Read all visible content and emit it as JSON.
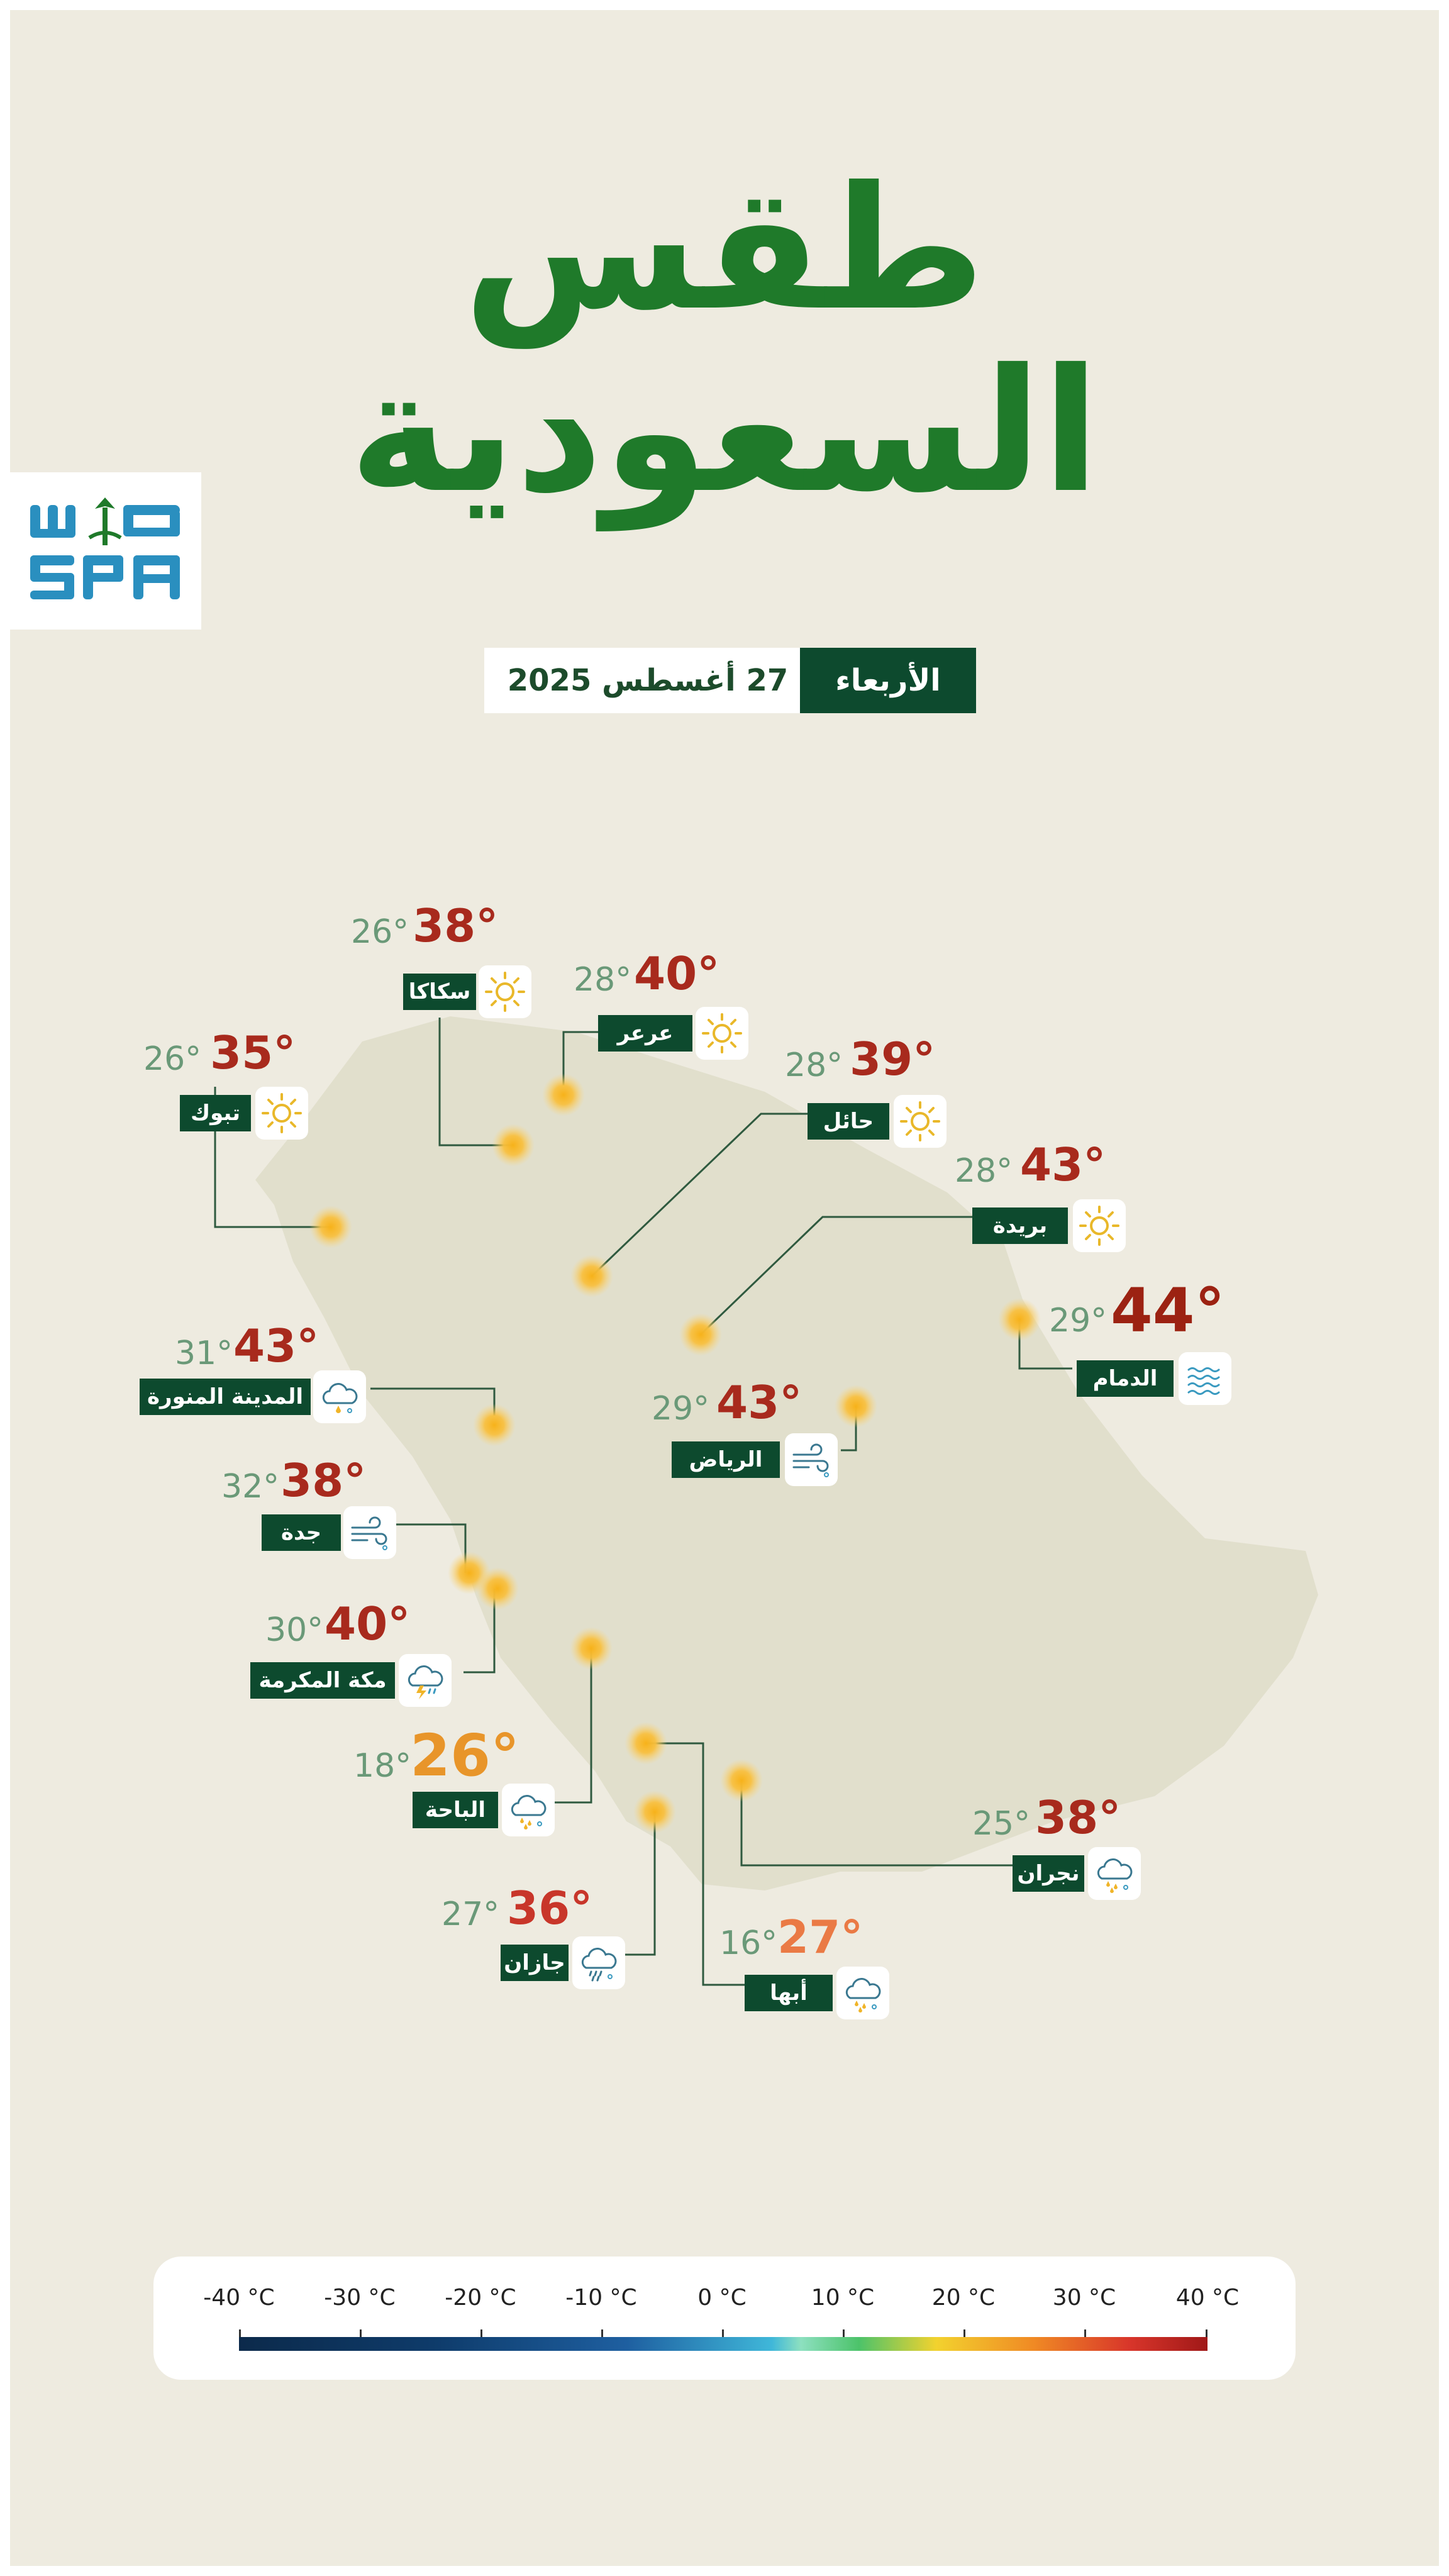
{
  "title": {
    "line1": "طقس",
    "line2": "السعودية"
  },
  "logo": {
    "arabic": "واس",
    "latin": "SPA"
  },
  "date": {
    "day": "الأربعاء",
    "full": "27 أغسطس 2025"
  },
  "colors": {
    "background": "#eeebe0",
    "title_green": "#1f7a2a",
    "label_bg": "#0d4a2e",
    "high_temp": "#a82a1d",
    "low_temp": "#6a9978",
    "mild_high": "#e8952a"
  },
  "cities": [
    {
      "name": "سكاكا",
      "high": "38°",
      "low": "26°",
      "icon": "sun-icon"
    },
    {
      "name": "عرعر",
      "high": "40°",
      "low": "28°",
      "icon": "sun-icon"
    },
    {
      "name": "تبوك",
      "high": "35°",
      "low": "26°",
      "icon": "sun-icon"
    },
    {
      "name": "حائل",
      "high": "39°",
      "low": "28°",
      "icon": "sun-icon"
    },
    {
      "name": "بريدة",
      "high": "43°",
      "low": "28°",
      "icon": "sun-icon"
    },
    {
      "name": "الدمام",
      "high": "44°",
      "low": "29°",
      "icon": "haze-icon"
    },
    {
      "name": "المدينة المنورة",
      "high": "43°",
      "low": "31°",
      "icon": "cloud-drizzle-icon"
    },
    {
      "name": "الرياض",
      "high": "43°",
      "low": "29°",
      "icon": "wind-icon"
    },
    {
      "name": "جدة",
      "high": "38°",
      "low": "32°",
      "icon": "wind-icon"
    },
    {
      "name": "مكة المكرمة",
      "high": "40°",
      "low": "30°",
      "icon": "thunderstorm-icon"
    },
    {
      "name": "الباحة",
      "high": "26°",
      "low": "18°",
      "icon": "cloud-rain-icon"
    },
    {
      "name": "نجران",
      "high": "38°",
      "low": "25°",
      "icon": "cloud-rain-icon"
    },
    {
      "name": "جازان",
      "high": "36°",
      "low": "27°",
      "icon": "cloud-showers-icon"
    },
    {
      "name": "أبها",
      "high": "27°",
      "low": "16°",
      "icon": "cloud-rain-icon"
    }
  ],
  "legend": {
    "labels": [
      "-40 °C",
      "-30 °C",
      "-20 °C",
      "-10 °C",
      "0 °C",
      "10 °C",
      "20 °C",
      "30 °C",
      "40 °C"
    ]
  }
}
